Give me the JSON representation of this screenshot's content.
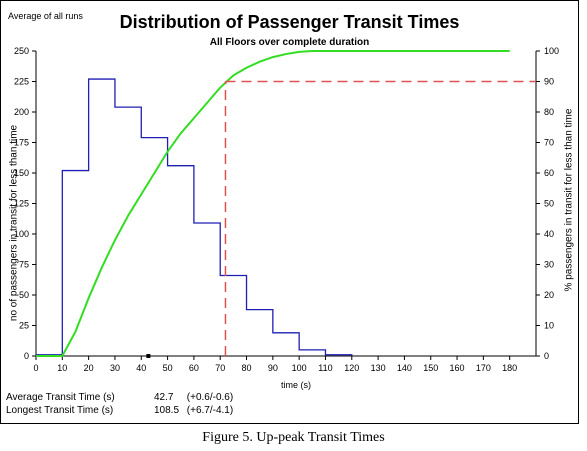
{
  "corner_label": "Average of all runs",
  "caption": "Figure 5.  Up-peak Transit Times",
  "stats": [
    {
      "label": "Average Transit Time (s)",
      "value": "42.7",
      "range": "(+0.6/-0.6)"
    },
    {
      "label": "Longest Transit Time (s)",
      "value": "108.5",
      "range": "(+6.7/-4.1)"
    }
  ],
  "colors": {
    "histogram": "#1f1fb4",
    "cumulative": "#33dd22",
    "marker": "#e05050"
  },
  "chart_data": {
    "type": "line",
    "title": "Distribution of Passenger Transit Times",
    "subtitle": "All Floors over complete duration",
    "xlabel": "time (s)",
    "ylabel": "no of passengers in transit for less than time",
    "y2label": "% passengers in transit for less than time",
    "xlim": [
      0,
      190
    ],
    "ylim": [
      0,
      250
    ],
    "y2lim": [
      0,
      100
    ],
    "xticks": [
      0,
      10,
      20,
      30,
      40,
      50,
      60,
      70,
      80,
      90,
      100,
      110,
      120,
      130,
      140,
      150,
      160,
      170,
      180
    ],
    "yticks": [
      0,
      25,
      50,
      75,
      100,
      125,
      150,
      175,
      200,
      225,
      250
    ],
    "ytick_labels": [
      "0",
      "25",
      "50",
      "75",
      "100",
      "125",
      "150",
      "175",
      "200",
      "225",
      "250"
    ],
    "y2ticks": [
      0,
      10,
      20,
      30,
      40,
      50,
      60,
      70,
      80,
      90,
      100
    ],
    "grid": false,
    "series": [
      {
        "kind": "step-histogram",
        "axis": "left",
        "bins": [
          {
            "x0": 0,
            "x1": 10,
            "y": 1
          },
          {
            "x0": 10,
            "x1": 20,
            "y": 152
          },
          {
            "x0": 20,
            "x1": 30,
            "y": 227
          },
          {
            "x0": 30,
            "x1": 40,
            "y": 204
          },
          {
            "x0": 40,
            "x1": 50,
            "y": 179
          },
          {
            "x0": 50,
            "x1": 60,
            "y": 156
          },
          {
            "x0": 60,
            "x1": 70,
            "y": 109
          },
          {
            "x0": 70,
            "x1": 80,
            "y": 66
          },
          {
            "x0": 80,
            "x1": 90,
            "y": 38
          },
          {
            "x0": 90,
            "x1": 100,
            "y": 19
          },
          {
            "x0": 100,
            "x1": 110,
            "y": 5
          },
          {
            "x0": 110,
            "x1": 120,
            "y": 1
          }
        ]
      },
      {
        "kind": "line",
        "axis": "right",
        "x": [
          0,
          10,
          15,
          20,
          25,
          30,
          35,
          40,
          45,
          50,
          55,
          60,
          65,
          70,
          75,
          80,
          85,
          90,
          95,
          100,
          105,
          110,
          120,
          140,
          160,
          180
        ],
        "y": [
          0,
          0,
          8,
          19,
          29,
          38,
          46,
          53,
          60,
          67,
          73,
          78,
          83,
          88,
          92,
          94.5,
          96.5,
          98,
          99,
          99.7,
          100,
          100,
          100,
          100,
          100,
          100
        ]
      }
    ],
    "annotations": [
      {
        "type": "dashed-marker",
        "x": 72,
        "y2": 90
      }
    ]
  }
}
